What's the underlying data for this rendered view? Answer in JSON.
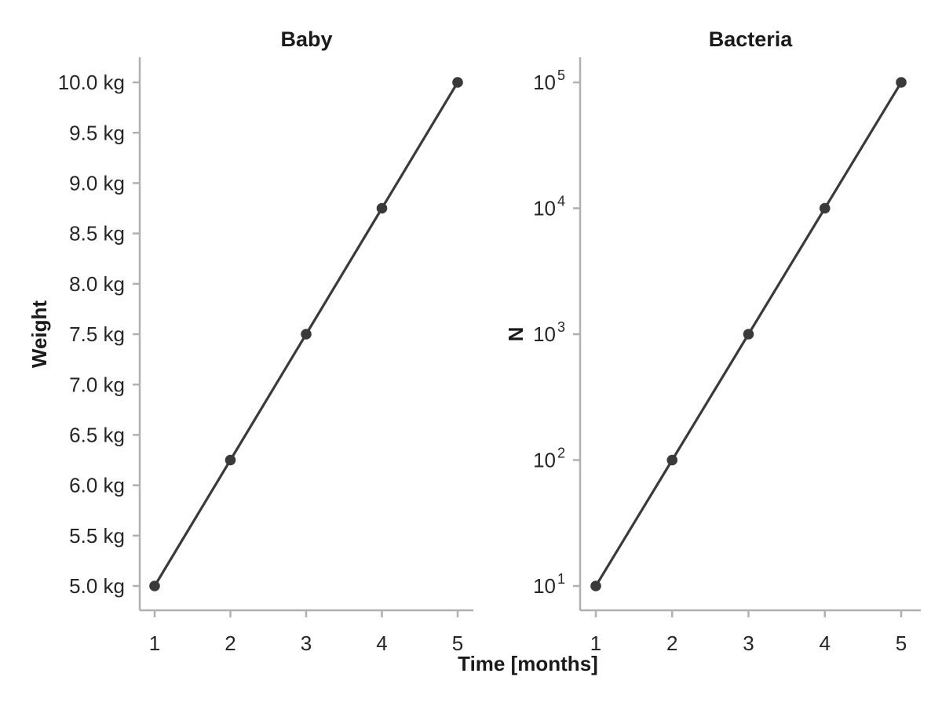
{
  "figure": {
    "xlabel": "Time [months]",
    "background_color": "#ffffff",
    "tick_text_color": "#262626",
    "label_text_color": "#1a1a1a",
    "axis_color": "#b0b0b0",
    "series_color": "#3a3a3a"
  },
  "chart_data": [
    {
      "type": "line",
      "title": "Baby",
      "ylabel": "Weight",
      "y_scale": "linear",
      "grid": false,
      "legend": null,
      "marker": "circle",
      "x": [
        1,
        2,
        3,
        4,
        5
      ],
      "y": [
        5.0,
        6.25,
        7.5,
        8.75,
        10.0
      ],
      "x_ticks": [
        1,
        2,
        3,
        4,
        5
      ],
      "x_tick_labels": [
        "1",
        "2",
        "3",
        "4",
        "5"
      ],
      "xlim": [
        0.8,
        5.2
      ],
      "ylim": [
        4.75,
        10.25
      ],
      "y_ticks": [
        {
          "value": 5.0,
          "label": "5.0 kg"
        },
        {
          "value": 5.5,
          "label": "5.5 kg"
        },
        {
          "value": 6.0,
          "label": "6.0 kg"
        },
        {
          "value": 6.5,
          "label": "6.5 kg"
        },
        {
          "value": 7.0,
          "label": "7.0 kg"
        },
        {
          "value": 7.5,
          "label": "7.5 kg"
        },
        {
          "value": 8.0,
          "label": "8.0 kg"
        },
        {
          "value": 8.5,
          "label": "8.5 kg"
        },
        {
          "value": 9.0,
          "label": "9.0 kg"
        },
        {
          "value": 9.5,
          "label": "9.5 kg"
        },
        {
          "value": 10.0,
          "label": "10.0 kg"
        }
      ]
    },
    {
      "type": "line",
      "title": "Bacteria",
      "ylabel": "N",
      "y_scale": "log",
      "grid": false,
      "legend": null,
      "marker": "circle",
      "x": [
        1,
        2,
        3,
        4,
        5
      ],
      "y": [
        10,
        100,
        1000,
        10000,
        100000
      ],
      "x_ticks": [
        1,
        2,
        3,
        4,
        5
      ],
      "x_tick_labels": [
        "1",
        "2",
        "3",
        "4",
        "5"
      ],
      "xlim": [
        0.8,
        5.2
      ],
      "ylim": [
        6.3,
        158489
      ],
      "y_ticks": [
        {
          "value": 10,
          "base": "10",
          "exp": "1"
        },
        {
          "value": 100,
          "base": "10",
          "exp": "2"
        },
        {
          "value": 1000,
          "base": "10",
          "exp": "3"
        },
        {
          "value": 10000,
          "base": "10",
          "exp": "4"
        },
        {
          "value": 100000,
          "base": "10",
          "exp": "5"
        }
      ]
    }
  ]
}
